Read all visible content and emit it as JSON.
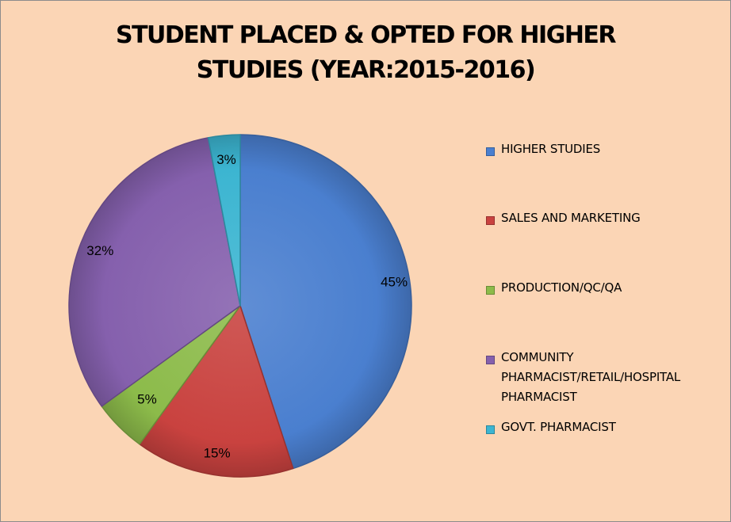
{
  "chart_data": {
    "type": "pie",
    "title_lines": [
      "STUDENT PLACED & OPTED FOR HIGHER",
      "STUDIES (YEAR:2015-2016)"
    ],
    "legend_position": "right",
    "slices": [
      {
        "name": "HIGHER STUDIES",
        "value": 45,
        "label": "45%",
        "color": "#4a7fcf"
      },
      {
        "name": "SALES AND MARKETING",
        "value": 15,
        "label": "15%",
        "color": "#c9423f"
      },
      {
        "name": "PRODUCTION/QC/QA",
        "value": 5,
        "label": "5%",
        "color": "#8cbb4a"
      },
      {
        "name": "COMMUNITY PHARMACIST/RETAIL/HOSPITAL PHARMACIST",
        "value": 32,
        "label": "32%",
        "color": "#8560ad"
      },
      {
        "name": "GOVT. PHARMACIST",
        "value": 3,
        "label": "3%",
        "color": "#3cb5d1"
      }
    ]
  }
}
